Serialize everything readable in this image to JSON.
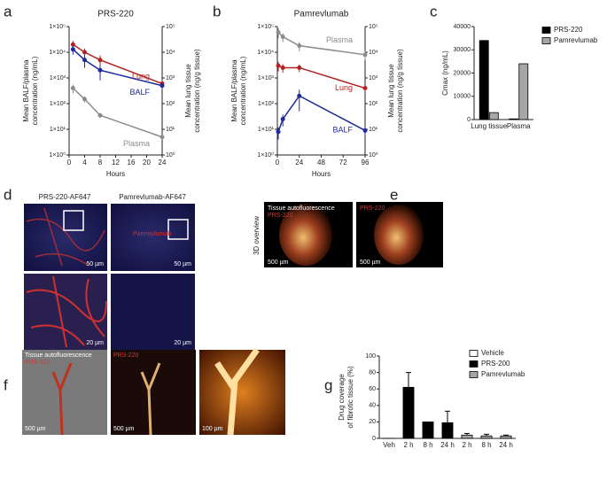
{
  "panels": [
    "a",
    "b",
    "c",
    "d",
    "e",
    "f",
    "g"
  ],
  "chart_data": [
    {
      "type": "line",
      "title": "PRS-220",
      "xlabel": "Hours",
      "ylabel": [
        "Mean BALF/plasma",
        "concentration (ng/mL)"
      ],
      "y2label": [
        "Mean lung tissue",
        "concentration (ng/g tissue)"
      ],
      "log_scale": true,
      "x": [
        1,
        4,
        8,
        24
      ],
      "xlim": [
        0,
        24
      ],
      "xticks": [
        0,
        4,
        8,
        12,
        16,
        20,
        24
      ],
      "ylim": [
        1,
        100000
      ],
      "yticks": [
        {
          "value": 1,
          "label": "1×10⁰"
        },
        {
          "value": 10,
          "label": "1×10¹"
        },
        {
          "value": 100,
          "label": "1×10²"
        },
        {
          "value": 1000,
          "label": "1×10³"
        },
        {
          "value": 10000,
          "label": "1×10⁴"
        },
        {
          "value": 100000,
          "label": "1×10⁵"
        }
      ],
      "y2lim": [
        1,
        100000
      ],
      "y2ticks": [
        {
          "value": 1,
          "label": "10⁰"
        },
        {
          "value": 10,
          "label": "10¹"
        },
        {
          "value": 100,
          "label": "10²"
        },
        {
          "value": 1000,
          "label": "10³"
        },
        {
          "value": 10000,
          "label": "10⁴"
        },
        {
          "value": 100000,
          "label": "10⁵"
        }
      ],
      "series": [
        {
          "name": "Lung",
          "color": "#b22222",
          "axis": "y2",
          "values": [
            20000,
            10000,
            5000,
            600
          ],
          "errors": [
            8000,
            4000,
            2500,
            200
          ]
        },
        {
          "name": "BALF",
          "color": "#1f2a9b",
          "values": [
            13000,
            5000,
            2000,
            500
          ],
          "errors": [
            5000,
            2500,
            1200,
            150
          ]
        },
        {
          "name": "Plasma",
          "color": "#8c8c8c",
          "values": [
            400,
            150,
            35,
            5
          ],
          "errors": [
            150,
            40,
            8,
            1
          ]
        }
      ]
    },
    {
      "type": "line",
      "title": "Pamrevlumab",
      "xlabel": "Hours",
      "ylabel": [
        "Mean BALF/plasma",
        "concentration (ng/mL)"
      ],
      "y2label": [
        "Mean lung tissue",
        "concentration (ng/g tissue)"
      ],
      "log_scale": true,
      "x": [
        1,
        6,
        24,
        96
      ],
      "xlim": [
        0,
        96
      ],
      "xticks": [
        0,
        24,
        48,
        72,
        96
      ],
      "ylim": [
        1,
        100000
      ],
      "yticks": [
        {
          "value": 1,
          "label": "1×10⁰"
        },
        {
          "value": 10,
          "label": "1×10¹"
        },
        {
          "value": 100,
          "label": "1×10²"
        },
        {
          "value": 1000,
          "label": "1×10³"
        },
        {
          "value": 10000,
          "label": "1×10⁴"
        },
        {
          "value": 100000,
          "label": "1×10⁵"
        }
      ],
      "y2lim": [
        1,
        100000
      ],
      "y2ticks": [
        {
          "value": 1,
          "label": "10⁰"
        },
        {
          "value": 10,
          "label": "10¹"
        },
        {
          "value": 100,
          "label": "10²"
        },
        {
          "value": 1000,
          "label": "10³"
        },
        {
          "value": 10000,
          "label": "10⁴"
        },
        {
          "value": 100000,
          "label": "10⁵"
        }
      ],
      "series": [
        {
          "name": "Plasma",
          "color": "#8c8c8c",
          "values": [
            60000,
            40000,
            18000,
            8000
          ],
          "errors": [
            25000,
            15000,
            7000,
            3000
          ]
        },
        {
          "name": "Lung",
          "color": "#b22222",
          "axis": "y2",
          "values": [
            3000,
            2500,
            2500,
            400
          ],
          "errors": [
            1200,
            900,
            800,
            100
          ]
        },
        {
          "name": "BALF",
          "color": "#1f2a9b",
          "values": [
            8,
            25,
            200,
            9
          ],
          "errors": [
            4,
            12,
            150,
            3
          ]
        }
      ]
    },
    {
      "type": "bar",
      "ylabel": "Cmax (ng/mL)",
      "categories": [
        "Lung tissue",
        "Plasma"
      ],
      "ylim": [
        0,
        40000
      ],
      "yticks": [
        0,
        10000,
        20000,
        30000,
        40000
      ],
      "series": [
        {
          "name": "PRS-220",
          "color": "#000000",
          "values": [
            34000,
            300
          ]
        },
        {
          "name": "Pamrevlumab",
          "color": "#a6a6a6",
          "values": [
            3000,
            24000
          ]
        }
      ]
    },
    {
      "type": "bar",
      "ylabel": [
        "Drug coverage",
        "of fibrotic tissue (%)"
      ],
      "categories": [
        "Veh",
        "2 h",
        "8 h",
        "24 h",
        "2 h",
        "8 h",
        "24 h"
      ],
      "ylim": [
        0,
        100
      ],
      "yticks": [
        0,
        20,
        40,
        60,
        80,
        100
      ],
      "series": [
        {
          "name": "Vehicle",
          "color": "#ffffff",
          "values": [
            0,
            null,
            null,
            null,
            null,
            null,
            null
          ]
        },
        {
          "name": "PRS-200",
          "color": "#000000",
          "values": [
            null,
            62,
            20,
            19,
            null,
            null,
            null
          ],
          "errors": [
            null,
            18,
            null,
            14,
            null,
            null,
            null
          ]
        },
        {
          "name": "Pamrevlumab",
          "color": "#a6a6a6",
          "values": [
            null,
            null,
            null,
            null,
            4,
            3,
            3
          ],
          "errors": [
            null,
            null,
            null,
            null,
            2,
            2,
            1
          ]
        }
      ]
    }
  ],
  "images": {
    "d": {
      "columns": [
        "PRS-220-AF647",
        "Pamrevlumab-AF647"
      ],
      "overlay": "Pamrevlumab",
      "scales": [
        "50 µm",
        "50 µm",
        "20 µm",
        "20 µm"
      ]
    },
    "e": {
      "row": "3D overview",
      "labels": [
        "Tissue autofluorescence",
        "PRS-220",
        "PRS-220"
      ],
      "scales": [
        "500 µm",
        "500 µm"
      ]
    },
    "f": {
      "labels": [
        "Tissue autofluorescence",
        "PRS-220",
        "PRS-220"
      ],
      "scales": [
        "500 µm",
        "500 µm",
        "100 µm"
      ]
    }
  }
}
